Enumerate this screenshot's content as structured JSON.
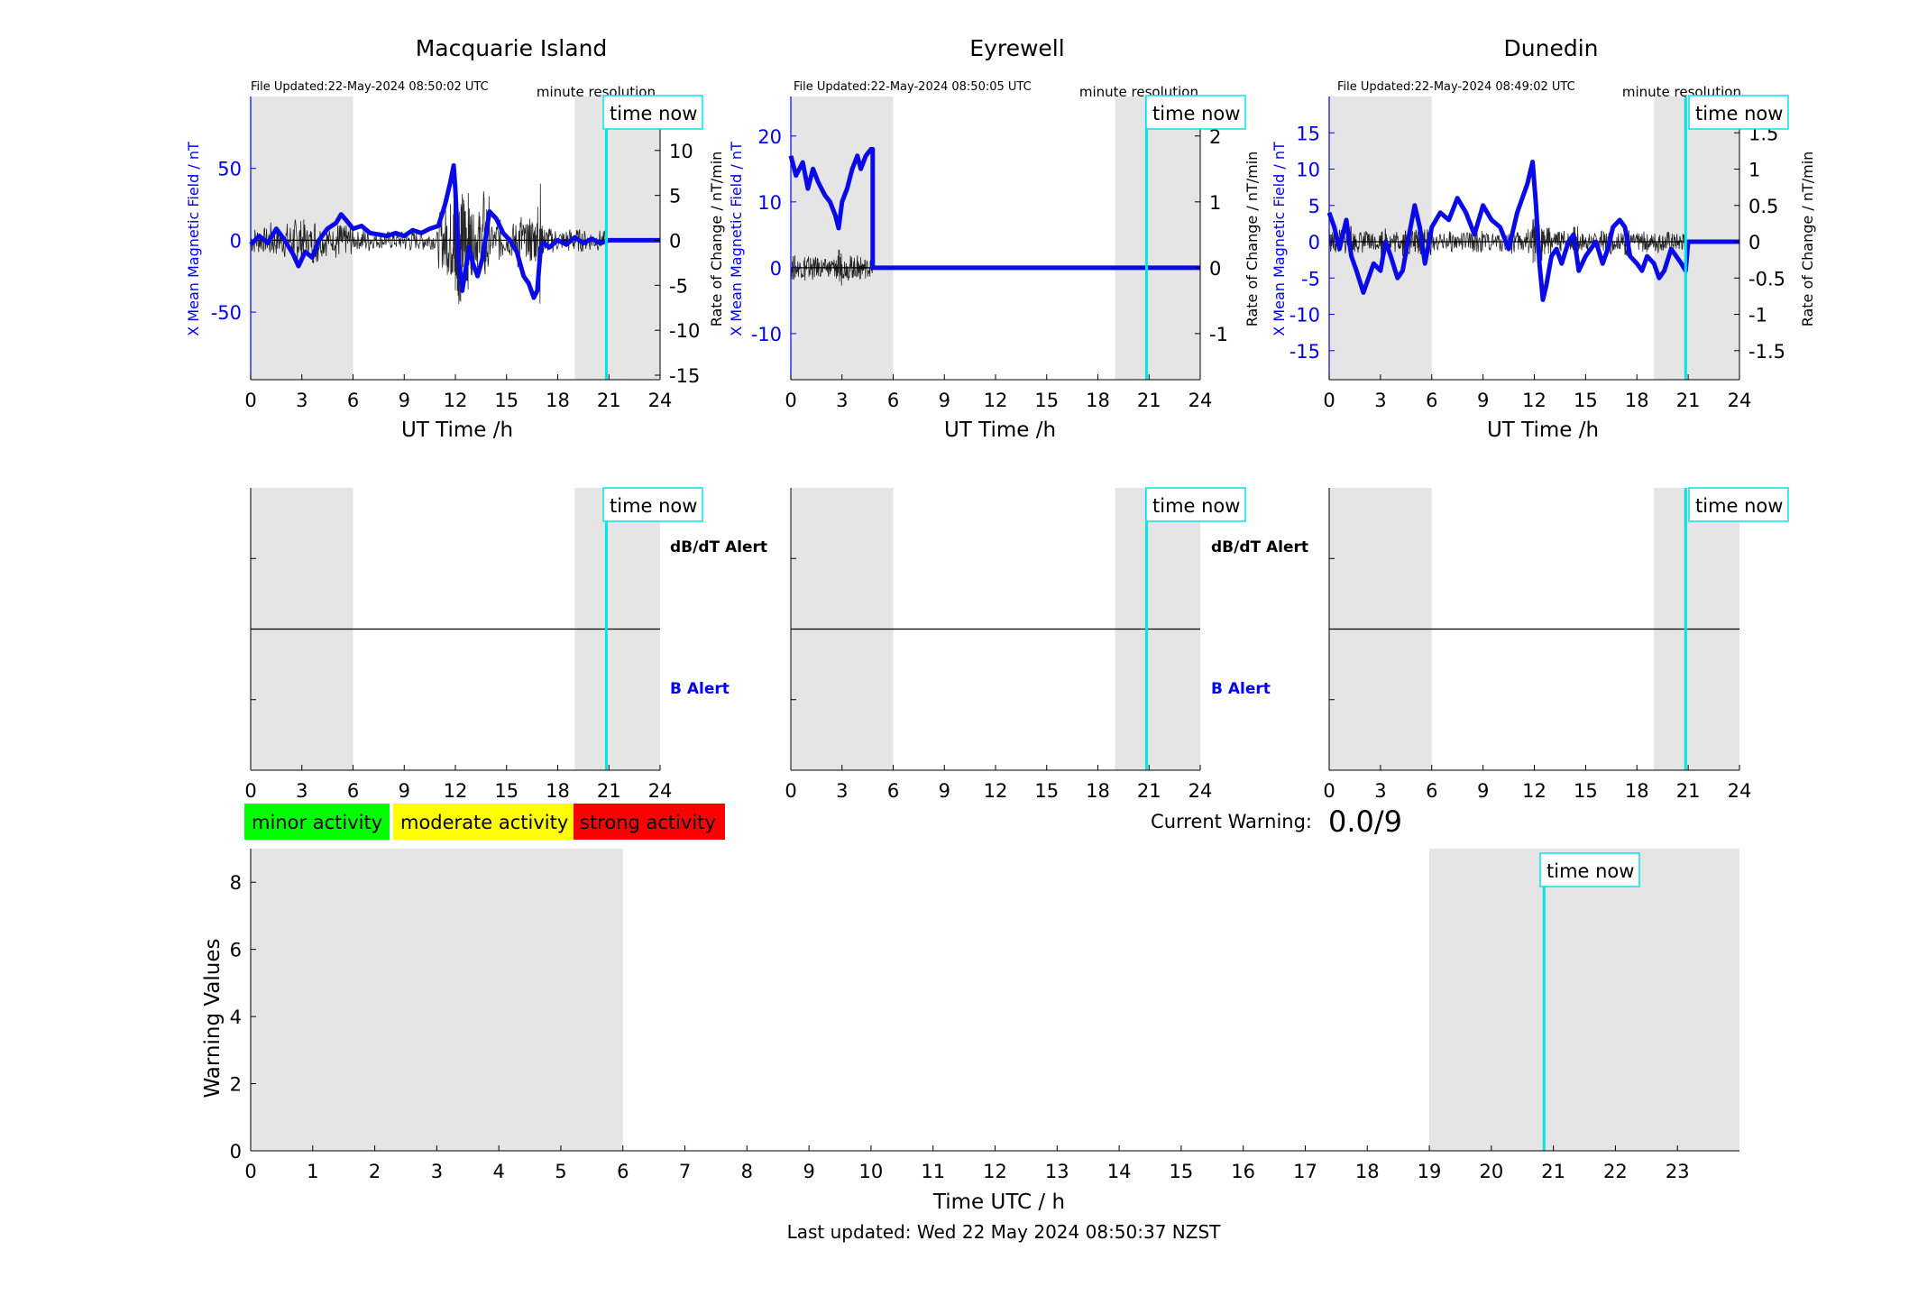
{
  "colors": {
    "field_line": "#0a0ae6",
    "rate_line": "#000000",
    "time_now": "#00e5e5",
    "shade": "#e5e5e5",
    "axis_blue": "#0000ee",
    "minor": "#00ff00",
    "moderate": "#ffff00",
    "strong": "#ff0000"
  },
  "time_now_label": "time now",
  "minute_resolution_label": "minute resolution",
  "dbdt_alert_label": "dB/dT Alert",
  "b_alert_label": "B Alert",
  "legend": {
    "minor": "minor activity",
    "moderate": "moderate activity",
    "strong": "strong activity"
  },
  "current_warning": {
    "label": "Current Warning:",
    "value": "0.0/9"
  },
  "last_updated": "Last updated: Wed 22 May 2024 08:50:37 NZST",
  "chart_data": [
    {
      "type": "line",
      "title": "Macquarie Island",
      "file_updated": "File Updated:22-May-2024 08:50:02 UTC",
      "xlabel": "UT Time /h",
      "ylabel": "X Mean Magnetic Field / nT",
      "y2label": "Rate of Change / nT/min",
      "x_ticks": [
        "0",
        "3",
        "6",
        "9",
        "12",
        "15",
        "18",
        "21",
        "24"
      ],
      "xlim": [
        0,
        24
      ],
      "ylim": [
        -97,
        100
      ],
      "y_ticks": [
        "-50",
        "0",
        "50"
      ],
      "y2lim": [
        -15.5,
        16
      ],
      "y2_ticks": [
        "-15",
        "-10",
        "-5",
        "0",
        "5",
        "10",
        "15"
      ],
      "shaded_ranges": [
        [
          0,
          6
        ],
        [
          19,
          24
        ]
      ],
      "time_now": 20.85,
      "series": [
        {
          "x": [
            0,
            0.5,
            1,
            1.5,
            2,
            2.5,
            2.8,
            3.2,
            3.6,
            4,
            4.5,
            5,
            5.3,
            5.6,
            6,
            6.5,
            7,
            7.5,
            8,
            8.5,
            9,
            9.5,
            10,
            10.5,
            11,
            11.4,
            11.7,
            11.9,
            12,
            12.2,
            12.4,
            12.6,
            12.8,
            13,
            13.3,
            13.6,
            14,
            14.4,
            14.8,
            15.2,
            15.6,
            16,
            16.3,
            16.6,
            16.8,
            17,
            17.2,
            17.5,
            18,
            18.5,
            19,
            19.5,
            20,
            20.5,
            21,
            22,
            23,
            24
          ],
          "y": [
            -3,
            3,
            -2,
            8,
            0,
            -10,
            -18,
            -8,
            -12,
            0,
            8,
            12,
            18,
            14,
            8,
            10,
            5,
            4,
            3,
            5,
            3,
            7,
            5,
            8,
            10,
            25,
            40,
            52,
            35,
            -15,
            -35,
            -20,
            -5,
            -15,
            -25,
            -12,
            20,
            15,
            5,
            0,
            -8,
            -25,
            -30,
            -40,
            -35,
            -5,
            -2,
            -5,
            0,
            -3,
            2,
            -2,
            1,
            -2,
            0,
            0,
            0,
            0
          ]
        }
      ]
    },
    {
      "type": "line",
      "title": "Eyrewell",
      "file_updated": "File Updated:22-May-2024 08:50:05 UTC",
      "xlabel": "UT Time /h",
      "ylabel": "X Mean Magnetic Field / nT",
      "y2label": "Rate of Change / nT/min",
      "x_ticks": [
        "0",
        "3",
        "6",
        "9",
        "12",
        "15",
        "18",
        "21",
        "24"
      ],
      "xlim": [
        0,
        24
      ],
      "ylim": [
        -17,
        26
      ],
      "y_ticks": [
        "-10",
        "0",
        "10",
        "20"
      ],
      "y2lim": [
        -1.7,
        2.6
      ],
      "y2_ticks": [
        "-1",
        "0",
        "1",
        "2"
      ],
      "shaded_ranges": [
        [
          0,
          6
        ],
        [
          19,
          24
        ]
      ],
      "time_now": 20.85,
      "series": [
        {
          "x": [
            0,
            0.3,
            0.7,
            1,
            1.3,
            1.6,
            2,
            2.3,
            2.6,
            2.8,
            3,
            3.3,
            3.6,
            3.9,
            4.1,
            4.4,
            4.7,
            4.8,
            4.8,
            6,
            9,
            12,
            15,
            18,
            21,
            24
          ],
          "y": [
            17,
            14,
            16,
            12,
            15,
            13,
            11,
            10,
            8,
            6,
            10,
            12,
            15,
            17,
            15,
            17,
            18,
            18,
            0,
            0,
            0,
            0,
            0,
            0,
            0,
            0
          ]
        }
      ]
    },
    {
      "type": "line",
      "title": "Dunedin",
      "file_updated": "File Updated:22-May-2024 08:49:02 UTC",
      "xlabel": "UT Time /h",
      "ylabel": "X Mean Magnetic Field / nT",
      "y2label": "Rate of Change / nT/min",
      "x_ticks": [
        "0",
        "3",
        "6",
        "9",
        "12",
        "15",
        "18",
        "21",
        "24"
      ],
      "xlim": [
        0,
        24
      ],
      "ylim": [
        -19,
        20
      ],
      "y_ticks": [
        "-15",
        "-10",
        "-5",
        "0",
        "5",
        "10",
        "15"
      ],
      "y2lim": [
        -1.9,
        2
      ],
      "y2_ticks": [
        "-1.5",
        "-1",
        "-0.5",
        "0",
        "0.5",
        "1",
        "1.5"
      ],
      "shaded_ranges": [
        [
          0,
          6
        ],
        [
          19,
          24
        ]
      ],
      "time_now": 20.85,
      "series": [
        {
          "x": [
            0,
            0.3,
            0.6,
            1,
            1.3,
            1.6,
            2,
            2.3,
            2.6,
            3,
            3.3,
            3.6,
            4,
            4.3,
            4.6,
            5,
            5.3,
            5.6,
            6,
            6.5,
            7,
            7.5,
            8,
            8.5,
            9,
            9.5,
            10,
            10.5,
            11,
            11.3,
            11.6,
            11.9,
            12.1,
            12.3,
            12.5,
            12.7,
            13,
            13.3,
            13.6,
            14,
            14.3,
            14.6,
            15,
            15.3,
            15.6,
            16,
            16.3,
            16.6,
            17,
            17.3,
            17.6,
            18,
            18.3,
            18.6,
            19,
            19.3,
            19.6,
            20,
            20.3,
            20.6,
            20.85,
            21,
            22,
            23,
            24
          ],
          "y": [
            4,
            2,
            -1,
            3,
            -2,
            -4,
            -7,
            -5,
            -3,
            -4,
            0,
            -2,
            -5,
            -4,
            0,
            5,
            2,
            -3,
            2,
            4,
            3,
            6,
            4,
            1,
            5,
            3,
            2,
            -1,
            4,
            6,
            8,
            11,
            5,
            -3,
            -8,
            -6,
            -2,
            -1,
            -3,
            0,
            1,
            -4,
            -2,
            -1,
            0,
            -3,
            -1,
            2,
            3,
            2,
            -2,
            -3,
            -4,
            -2,
            -3,
            -5,
            -4,
            -1,
            -2,
            -3,
            -4,
            0,
            0,
            0,
            0
          ]
        }
      ]
    },
    {
      "type": "line",
      "title": "",
      "panel": "alerts",
      "x_ticks": [
        "0",
        "3",
        "6",
        "9",
        "12",
        "15",
        "18",
        "21",
        "24"
      ],
      "xlim": [
        0,
        24
      ],
      "shaded_ranges": [
        [
          0,
          6
        ],
        [
          19,
          24
        ]
      ],
      "time_now": 20.85
    },
    {
      "type": "line",
      "title": "",
      "panel": "alerts",
      "x_ticks": [
        "0",
        "3",
        "6",
        "9",
        "12",
        "15",
        "18",
        "21",
        "24"
      ],
      "xlim": [
        0,
        24
      ],
      "shaded_ranges": [
        [
          0,
          6
        ],
        [
          19,
          24
        ]
      ],
      "time_now": 20.85
    },
    {
      "type": "line",
      "title": "",
      "panel": "alerts",
      "x_ticks": [
        "0",
        "3",
        "6",
        "9",
        "12",
        "15",
        "18",
        "21",
        "24"
      ],
      "xlim": [
        0,
        24
      ],
      "shaded_ranges": [
        [
          0,
          6
        ],
        [
          19,
          24
        ]
      ],
      "time_now": 20.85
    },
    {
      "type": "bar",
      "title": "",
      "xlabel": "Time UTC / h",
      "ylabel": "Warning Values",
      "xlim": [
        0,
        24
      ],
      "ylim": [
        0,
        9
      ],
      "x_ticks": [
        "0",
        "1",
        "2",
        "3",
        "4",
        "5",
        "6",
        "7",
        "8",
        "9",
        "10",
        "11",
        "12",
        "13",
        "14",
        "15",
        "16",
        "17",
        "18",
        "19",
        "20",
        "21",
        "22",
        "23"
      ],
      "y_ticks": [
        "0",
        "2",
        "4",
        "6",
        "8"
      ],
      "shaded_ranges": [
        [
          0,
          6
        ],
        [
          19,
          24
        ]
      ],
      "time_now": 20.85,
      "values": []
    }
  ]
}
